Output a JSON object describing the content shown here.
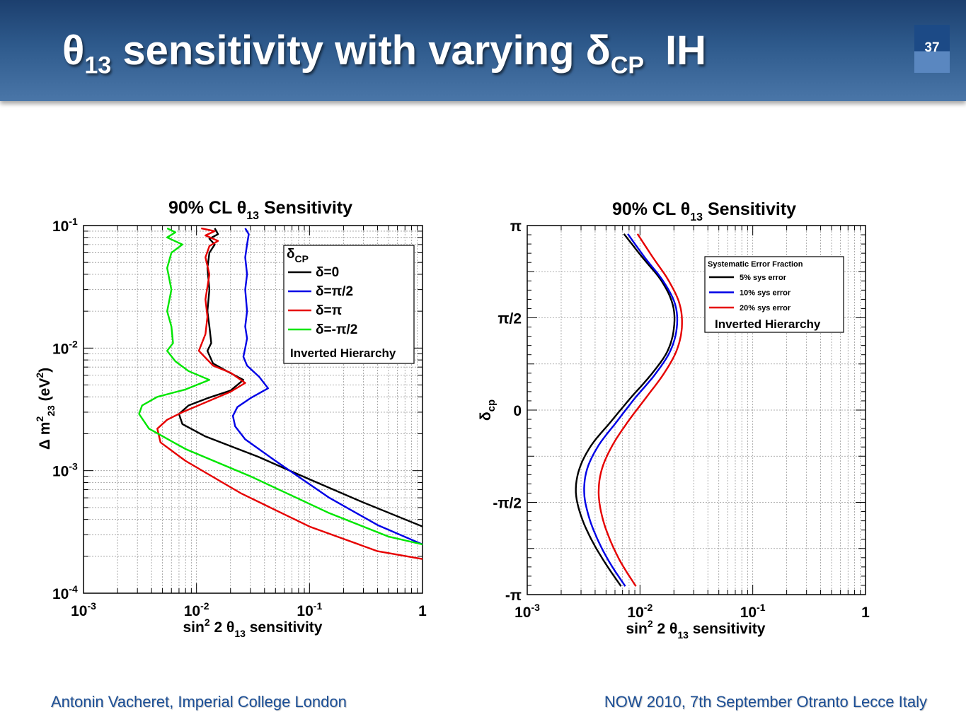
{
  "slide": {
    "title_parts": [
      "θ",
      "13",
      "sensitivity with varying δ",
      "CP",
      "IH"
    ],
    "number": "37",
    "footer_left": "Antonin Vacheret, Imperial College London",
    "footer_right": "NOW 2010, 7th September Otranto Lecce Italy"
  },
  "colors": {
    "black": "#000000",
    "blue": "#0000e6",
    "red": "#e60000",
    "green": "#00e600"
  },
  "chart_data": [
    {
      "type": "line",
      "title": "90% CL θ13 Sensitivity",
      "title_parts": [
        "90% CL θ",
        "13",
        " Sensitivity"
      ],
      "xlabel": "sin2 2 θ13 sensitivity",
      "xlabel_parts": [
        "sin",
        "2",
        " 2 θ",
        "13",
        " sensitivity"
      ],
      "ylabel": "Δ m223 (eV2)",
      "ylabel_parts": [
        "Δ m",
        "2",
        "23",
        " (eV",
        "2",
        ")"
      ],
      "x_scale": "log",
      "y_scale": "log",
      "xlim": [
        0.001,
        1
      ],
      "ylim": [
        0.0001,
        0.1
      ],
      "x_ticks": [
        {
          "base": "10",
          "exp": "-3"
        },
        {
          "base": "10",
          "exp": "-2"
        },
        {
          "base": "10",
          "exp": "-1"
        },
        {
          "base": "1",
          "exp": ""
        }
      ],
      "y_ticks": [
        {
          "base": "10",
          "exp": "-4"
        },
        {
          "base": "10",
          "exp": "-3"
        },
        {
          "base": "10",
          "exp": "-2"
        },
        {
          "base": "10",
          "exp": "-1"
        }
      ],
      "grid": true,
      "legend_placement": "top-right",
      "legend_header": [
        "δ",
        "CP"
      ],
      "legend_footer": "Inverted Hierarchy",
      "series": [
        {
          "name": "δ=0",
          "color": "#000000",
          "x": [
            0.0145,
            0.0155,
            0.013,
            0.0145,
            0.013,
            0.0125,
            0.013,
            0.0125,
            0.013,
            0.0135,
            0.0125,
            0.014,
            0.0185,
            0.026,
            0.02,
            0.0125,
            0.0085,
            0.007,
            0.0075,
            0.012,
            0.035,
            0.1,
            0.3,
            1.0
          ],
          "y": [
            0.095,
            0.085,
            0.078,
            0.07,
            0.06,
            0.045,
            0.03,
            0.02,
            0.015,
            0.011,
            0.0095,
            0.0075,
            0.0065,
            0.0055,
            0.0045,
            0.0039,
            0.0034,
            0.0029,
            0.0024,
            0.0019,
            0.0013,
            0.00085,
            0.00055,
            0.00035
          ]
        },
        {
          "name": "δ=π/2",
          "color": "#0000e6",
          "x": [
            0.027,
            0.029,
            0.028,
            0.027,
            0.028,
            0.027,
            0.028,
            0.027,
            0.028,
            0.027,
            0.026,
            0.028,
            0.036,
            0.043,
            0.03,
            0.023,
            0.021,
            0.022,
            0.027,
            0.05,
            0.15,
            0.4,
            1.0
          ],
          "y": [
            0.095,
            0.085,
            0.07,
            0.055,
            0.04,
            0.03,
            0.02,
            0.015,
            0.012,
            0.01,
            0.0085,
            0.0072,
            0.0058,
            0.0047,
            0.0039,
            0.0033,
            0.0028,
            0.0023,
            0.0018,
            0.0012,
            0.0006,
            0.00036,
            0.00025
          ]
        },
        {
          "name": "δ=π",
          "color": "#e60000",
          "x": [
            0.011,
            0.0145,
            0.012,
            0.0155,
            0.013,
            0.012,
            0.013,
            0.012,
            0.0125,
            0.012,
            0.0105,
            0.014,
            0.02,
            0.027,
            0.02,
            0.012,
            0.0075,
            0.0055,
            0.0045,
            0.0048,
            0.008,
            0.025,
            0.1,
            0.4,
            1.0
          ],
          "y": [
            0.095,
            0.09,
            0.083,
            0.075,
            0.068,
            0.055,
            0.04,
            0.025,
            0.018,
            0.013,
            0.0095,
            0.0072,
            0.0063,
            0.0052,
            0.0044,
            0.0036,
            0.003,
            0.0026,
            0.0022,
            0.0017,
            0.0012,
            0.00065,
            0.00035,
            0.00022,
            0.00019
          ]
        },
        {
          "name": "δ=-π/2",
          "color": "#00e600",
          "x": [
            0.0055,
            0.0065,
            0.0055,
            0.0075,
            0.006,
            0.0055,
            0.006,
            0.0055,
            0.006,
            0.0062,
            0.0055,
            0.0065,
            0.0085,
            0.013,
            0.008,
            0.0045,
            0.0033,
            0.0031,
            0.0038,
            0.008,
            0.03,
            0.15,
            0.5,
            1.0
          ],
          "y": [
            0.095,
            0.088,
            0.08,
            0.07,
            0.06,
            0.045,
            0.03,
            0.02,
            0.015,
            0.011,
            0.0095,
            0.0078,
            0.0065,
            0.0055,
            0.0046,
            0.004,
            0.0034,
            0.0029,
            0.0022,
            0.0015,
            0.0009,
            0.00045,
            0.00029,
            0.00025
          ]
        }
      ]
    },
    {
      "type": "line",
      "title": "90% CL θ13 Sensitivity",
      "title_parts": [
        "90% CL θ",
        "13",
        " Sensitivity"
      ],
      "xlabel": "sin2 2 θ13 sensitivity",
      "xlabel_parts": [
        "sin",
        "2",
        " 2 θ",
        "13",
        " sensitivity"
      ],
      "ylabel": "δcp",
      "ylabel_parts": [
        "δ",
        "cp"
      ],
      "x_scale": "log",
      "y_scale": "linear",
      "xlim": [
        0.001,
        1
      ],
      "ylim": [
        -3.1416,
        3.1416
      ],
      "x_ticks": [
        {
          "base": "10",
          "exp": "-3"
        },
        {
          "base": "10",
          "exp": "-2"
        },
        {
          "base": "10",
          "exp": "-1"
        },
        {
          "base": "1",
          "exp": ""
        }
      ],
      "y_ticks": [
        "-π",
        "-π/2",
        "0",
        "π/2",
        "π"
      ],
      "grid": true,
      "legend_placement": "top-right",
      "legend_header": "Systematic Error Fraction",
      "legend_footer": "Inverted Hierarchy",
      "series": [
        {
          "name": "5% sys error",
          "color": "#000000",
          "delta": [
            3.0,
            2.6,
            2.2,
            1.8,
            1.4,
            1.0,
            0.6,
            0.2,
            -0.2,
            -0.6,
            -1.0,
            -1.4,
            -1.8,
            -2.2,
            -2.6,
            -3.0
          ],
          "sensitivity": [
            0.0072,
            0.0105,
            0.0155,
            0.0195,
            0.02,
            0.0175,
            0.0125,
            0.0082,
            0.0055,
            0.0037,
            0.0029,
            0.0027,
            0.003,
            0.0037,
            0.0049,
            0.0068
          ]
        },
        {
          "name": "10% sys error",
          "color": "#0000e6",
          "delta": [
            3.0,
            2.6,
            2.2,
            1.8,
            1.4,
            1.0,
            0.6,
            0.2,
            -0.2,
            -0.6,
            -1.0,
            -1.4,
            -1.8,
            -2.2,
            -2.6,
            -3.0
          ],
          "sensitivity": [
            0.0078,
            0.011,
            0.016,
            0.0205,
            0.0212,
            0.0185,
            0.0135,
            0.009,
            0.0062,
            0.0043,
            0.0034,
            0.0032,
            0.0035,
            0.0042,
            0.0054,
            0.0074
          ]
        },
        {
          "name": "20% sys error",
          "color": "#e60000",
          "delta": [
            3.0,
            2.6,
            2.2,
            1.8,
            1.4,
            1.0,
            0.6,
            0.2,
            -0.2,
            -0.6,
            -1.0,
            -1.4,
            -1.8,
            -2.2,
            -2.6,
            -3.0
          ],
          "sensitivity": [
            0.0095,
            0.013,
            0.018,
            0.0225,
            0.0235,
            0.021,
            0.016,
            0.0112,
            0.0078,
            0.0057,
            0.0046,
            0.0043,
            0.0046,
            0.0054,
            0.0068,
            0.0092
          ]
        }
      ]
    }
  ]
}
